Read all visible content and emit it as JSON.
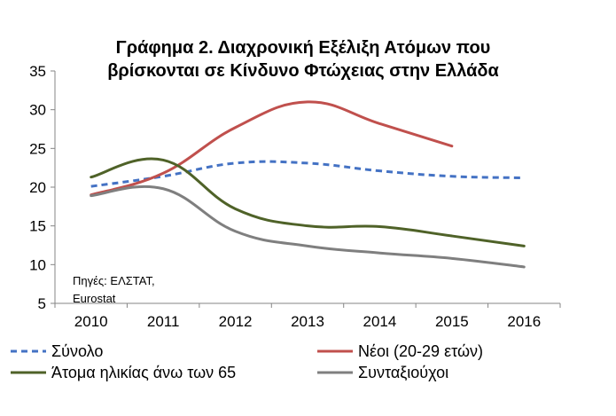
{
  "chart_data": {
    "type": "line",
    "title_lines": [
      "Γράφημα 2. Διαχρονική Εξέλιξη Ατόμων που",
      "βρίσκονται σε Κίνδυνο Φτώχειας στην Ελλάδα"
    ],
    "xlabel": "",
    "ylabel": "",
    "x": [
      "2010",
      "2011",
      "2012",
      "2013",
      "2014",
      "2015",
      "2016"
    ],
    "ylim": [
      5,
      35
    ],
    "yticks": [
      5,
      10,
      15,
      20,
      25,
      30,
      35
    ],
    "grid": false,
    "legend_position": "bottom",
    "source_lines": [
      "Πηγές: ΕΛΣΤΑΤ,",
      "Eurostat"
    ],
    "series": [
      {
        "name": "Σύνολο",
        "color": "#4472C4",
        "dashed": true,
        "values": [
          20.1,
          21.4,
          23.1,
          23.1,
          22.1,
          21.4,
          21.2
        ]
      },
      {
        "name": "Νέοι (20-29 ετών)",
        "color": "#C0504D",
        "dashed": false,
        "values": [
          19.0,
          21.8,
          27.7,
          31.0,
          28.2,
          25.3,
          null
        ]
      },
      {
        "name": "Άτομα ηλικίας άνω των 65",
        "color": "#4F6228",
        "dashed": false,
        "values": [
          21.3,
          23.5,
          17.2,
          15.0,
          14.9,
          13.7,
          12.4
        ]
      },
      {
        "name": "Συνταξιούχοι",
        "color": "#7F7F7F",
        "dashed": false,
        "values": [
          18.9,
          19.8,
          14.3,
          12.4,
          11.5,
          10.8,
          9.7
        ]
      }
    ]
  }
}
